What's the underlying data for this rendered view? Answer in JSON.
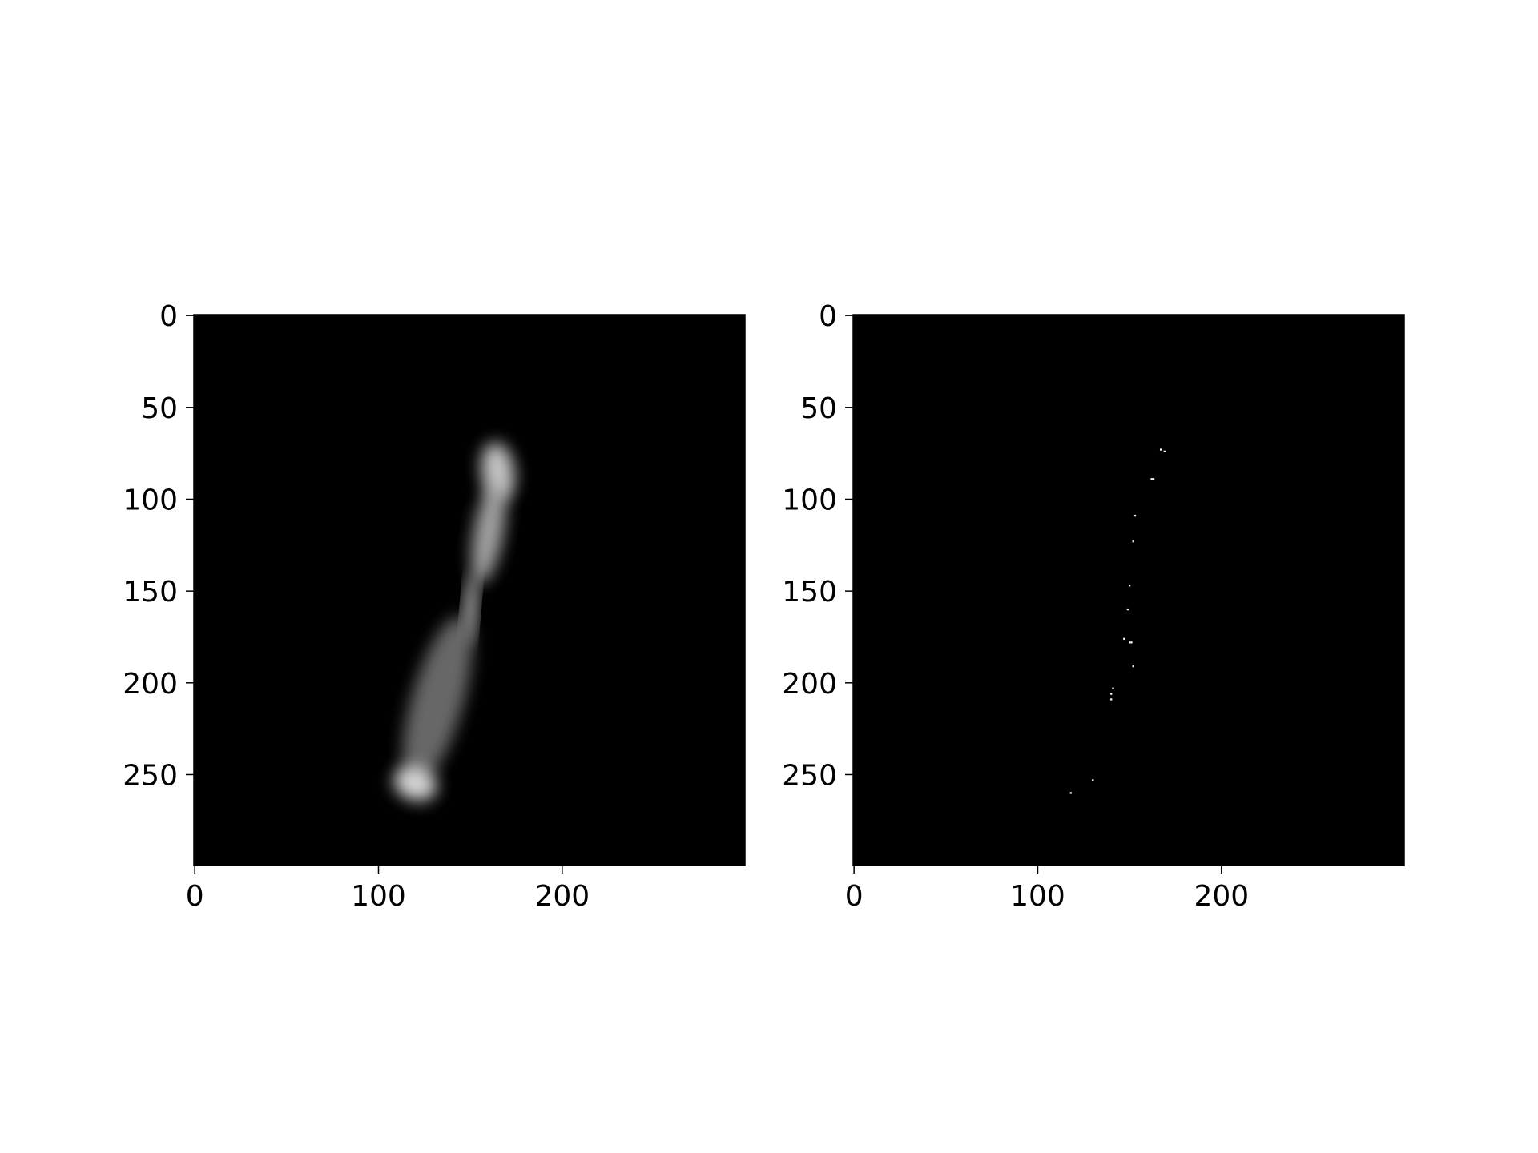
{
  "chart_data": [
    {
      "type": "heatmap",
      "title": "",
      "xlabel": "",
      "ylabel": "",
      "colormap": "gray",
      "background_color": "#000000",
      "xlim": [
        -0.5,
        299.5
      ],
      "ylim": [
        299.5,
        -0.5
      ],
      "x_ticks": [
        0,
        100,
        200
      ],
      "y_ticks": [
        0,
        50,
        100,
        150,
        200,
        250
      ],
      "x_tick_labels": [
        "0",
        "100",
        "200"
      ],
      "y_tick_labels": [
        "0",
        "50",
        "100",
        "150",
        "200",
        "250"
      ],
      "grid": false,
      "bright_regions": [
        {
          "description": "upper lobe",
          "center": [
            165,
            85
          ],
          "radii": [
            9,
            16
          ],
          "rotation_deg": -8,
          "intensity": 0.85
        },
        {
          "description": "upper lobe body",
          "center": [
            160,
            118
          ],
          "radii": [
            8,
            28
          ],
          "rotation_deg": 10,
          "intensity": 0.7
        },
        {
          "description": "central strip",
          "center": [
            150,
            160
          ],
          "radii": [
            3,
            20
          ],
          "rotation_deg": 5,
          "intensity": 0.95
        },
        {
          "description": "lower lobe body",
          "center": [
            132,
            210
          ],
          "radii": [
            14,
            48
          ],
          "rotation_deg": 16,
          "intensity": 0.45
        },
        {
          "description": "lower lobe tip",
          "center": [
            120,
            255
          ],
          "radii": [
            12,
            9
          ],
          "rotation_deg": 20,
          "intensity": 0.9
        }
      ]
    },
    {
      "type": "heatmap",
      "title": "",
      "xlabel": "",
      "ylabel": "",
      "colormap": "binary",
      "background_color": "#000000",
      "xlim": [
        -0.5,
        299.5
      ],
      "ylim": [
        299.5,
        -0.5
      ],
      "x_ticks": [
        0,
        100,
        200
      ],
      "y_ticks": [
        0,
        50,
        100,
        150,
        200,
        250
      ],
      "x_tick_labels": [
        "0",
        "100",
        "200"
      ],
      "y_tick_labels": [
        "0",
        "50",
        "100",
        "150",
        "200",
        "250"
      ],
      "grid": false,
      "points": [
        {
          "x": 167,
          "y": 73
        },
        {
          "x": 169,
          "y": 74
        },
        {
          "x": 162,
          "y": 89
        },
        {
          "x": 163,
          "y": 89
        },
        {
          "x": 153,
          "y": 109
        },
        {
          "x": 152,
          "y": 123
        },
        {
          "x": 150,
          "y": 147
        },
        {
          "x": 149,
          "y": 160
        },
        {
          "x": 147,
          "y": 176
        },
        {
          "x": 150,
          "y": 178
        },
        {
          "x": 151,
          "y": 178
        },
        {
          "x": 152,
          "y": 191
        },
        {
          "x": 141,
          "y": 203
        },
        {
          "x": 140,
          "y": 206
        },
        {
          "x": 140,
          "y": 209
        },
        {
          "x": 130,
          "y": 253
        },
        {
          "x": 118,
          "y": 260
        }
      ]
    }
  ]
}
